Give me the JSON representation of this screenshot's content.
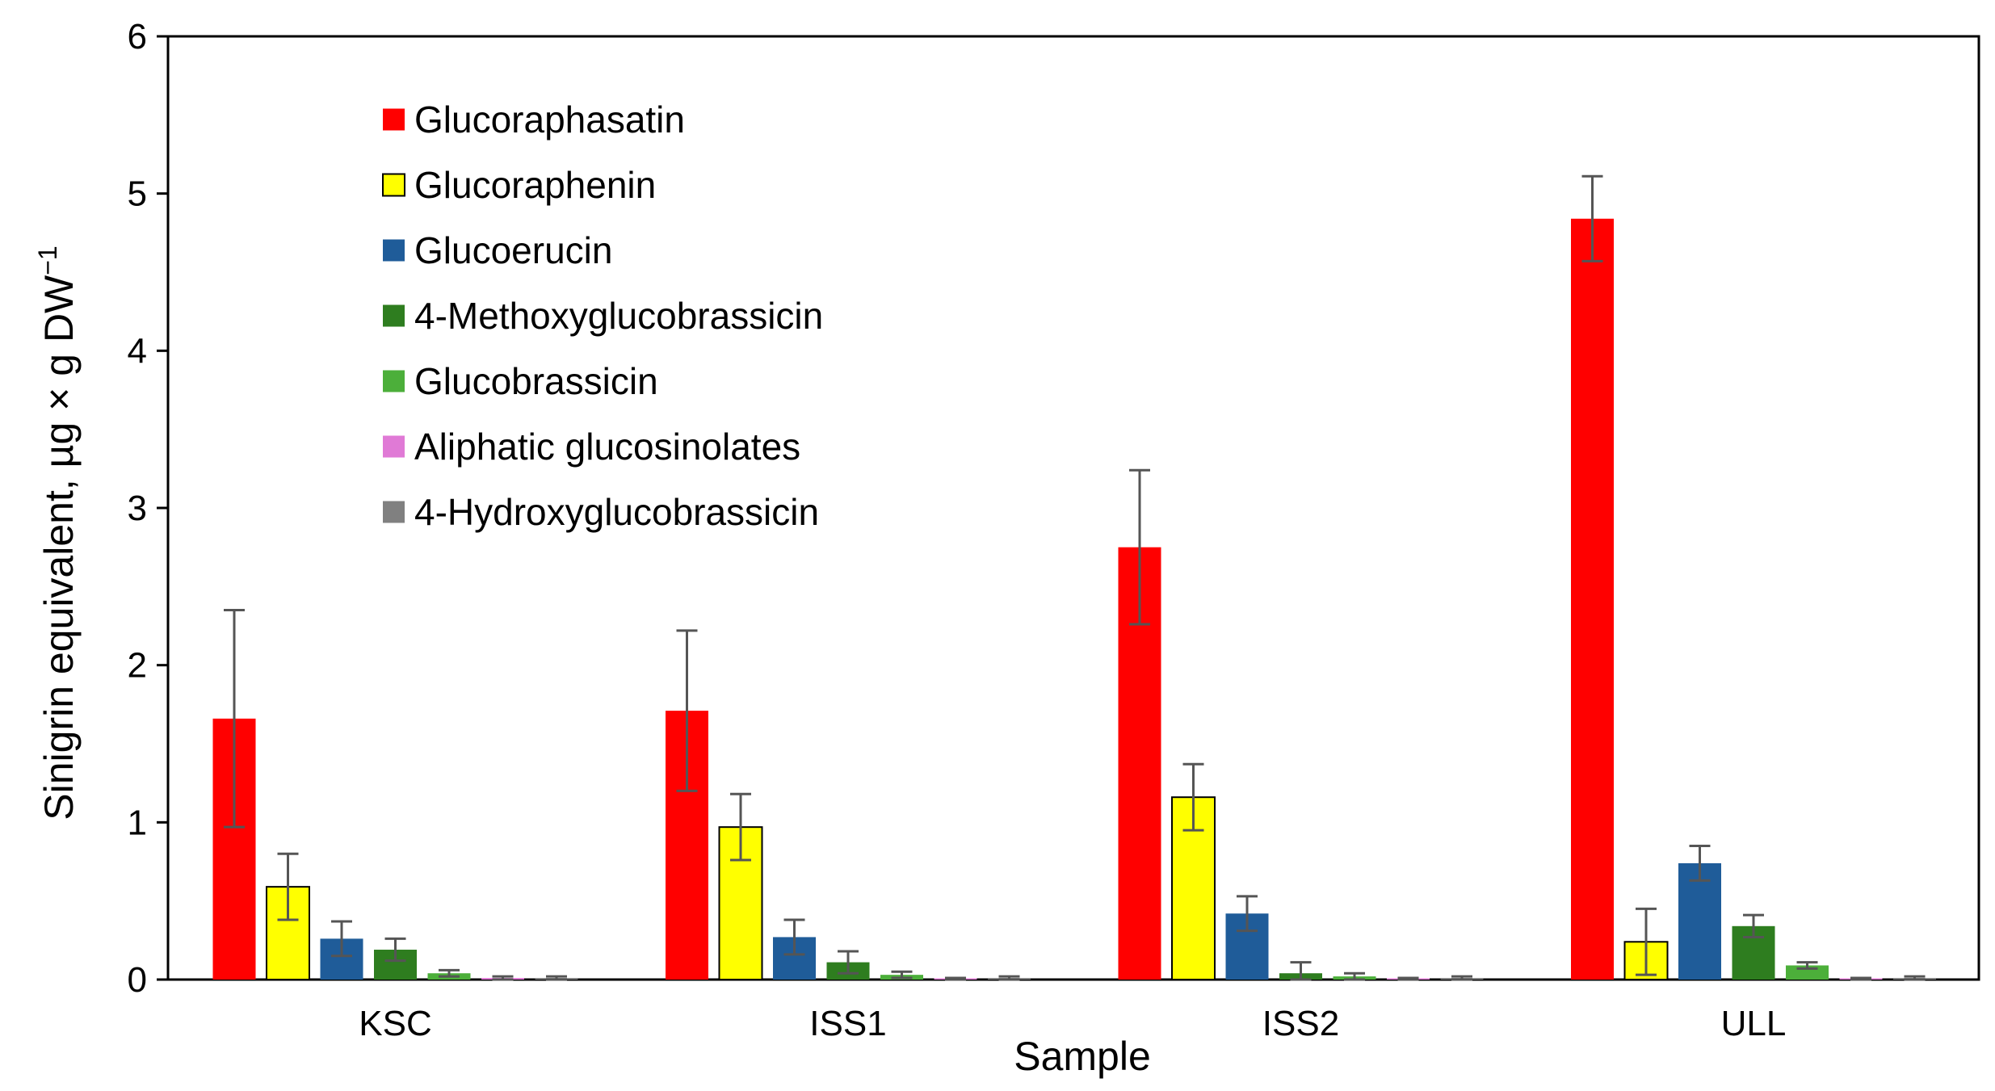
{
  "chart_data": {
    "type": "bar",
    "title": "",
    "xlabel": "Sample",
    "ylabel": "Sinigrin equivalent, µg × g DW",
    "ylabel_superscript": "−1",
    "ylim": [
      0,
      6
    ],
    "yticks": [
      0,
      1,
      2,
      3,
      4,
      5,
      6
    ],
    "grid": false,
    "legend_position": "top-left",
    "categories": [
      "KSC",
      "ISS1",
      "ISS2",
      "ULL"
    ],
    "series": [
      {
        "name": "Glucoraphasatin",
        "color": "#ff0000",
        "values": [
          1.66,
          1.71,
          2.75,
          4.84
        ],
        "errors": [
          0.69,
          0.51,
          0.49,
          0.27
        ]
      },
      {
        "name": "Glucoraphenin",
        "color": "#ffff00",
        "values": [
          0.59,
          0.97,
          1.16,
          0.24
        ],
        "errors": [
          0.21,
          0.21,
          0.21,
          0.21
        ]
      },
      {
        "name": "Glucoerucin",
        "color": "#1f5c99",
        "values": [
          0.26,
          0.27,
          0.42,
          0.74
        ],
        "errors": [
          0.11,
          0.11,
          0.11,
          0.11
        ]
      },
      {
        "name": "4-Methoxyglucobrassicin",
        "color": "#2e7d1f",
        "values": [
          0.19,
          0.11,
          0.04,
          0.34
        ],
        "errors": [
          0.07,
          0.07,
          0.07,
          0.07
        ]
      },
      {
        "name": "Glucobrassicin",
        "color": "#4caf3a",
        "values": [
          0.04,
          0.03,
          0.02,
          0.09
        ],
        "errors": [
          0.02,
          0.02,
          0.02,
          0.02
        ]
      },
      {
        "name": "Aliphatic glucosinolates",
        "color": "#e07ad6",
        "values": [
          0.01,
          0.005,
          0.005,
          0.005
        ],
        "errors": [
          0.01,
          0.005,
          0.005,
          0.005
        ]
      },
      {
        "name": "4-Hydroxyglucobrassicin",
        "color": "#808080",
        "values": [
          0.01,
          0.01,
          0.01,
          0.01
        ],
        "errors": [
          0.01,
          0.01,
          0.01,
          0.01
        ]
      }
    ]
  }
}
